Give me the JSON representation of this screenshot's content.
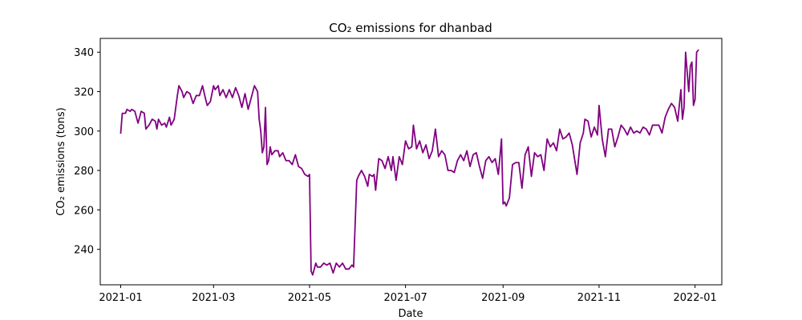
{
  "chart_data": {
    "type": "line",
    "title": "CO₂ emissions for dhanbad",
    "xlabel": "Date",
    "ylabel": "CO₂ emissions (tons)",
    "x_range": [
      "2020-12-19",
      "2022-01-18"
    ],
    "ylim": [
      222,
      347
    ],
    "grid": false,
    "legend": "none",
    "x_ticks": [
      {
        "date": "2021-01-01",
        "label": "2021-01"
      },
      {
        "date": "2021-03-01",
        "label": "2021-03"
      },
      {
        "date": "2021-05-01",
        "label": "2021-05"
      },
      {
        "date": "2021-07-01",
        "label": "2021-07"
      },
      {
        "date": "2021-09-01",
        "label": "2021-09"
      },
      {
        "date": "2021-11-01",
        "label": "2021-11"
      },
      {
        "date": "2022-01-01",
        "label": "2022-01"
      }
    ],
    "y_ticks": [
      240,
      260,
      280,
      300,
      320,
      340
    ],
    "line_color": "#800080",
    "series": [
      {
        "name": "",
        "points": [
          [
            "2021-01-01",
            299
          ],
          [
            "2021-01-02",
            309
          ],
          [
            "2021-01-04",
            309
          ],
          [
            "2021-01-05",
            311
          ],
          [
            "2021-01-07",
            310
          ],
          [
            "2021-01-08",
            311
          ],
          [
            "2021-01-10",
            310
          ],
          [
            "2021-01-12",
            304
          ],
          [
            "2021-01-14",
            310
          ],
          [
            "2021-01-16",
            309
          ],
          [
            "2021-01-17",
            301
          ],
          [
            "2021-01-19",
            303
          ],
          [
            "2021-01-21",
            306
          ],
          [
            "2021-01-23",
            305
          ],
          [
            "2021-01-24",
            301
          ],
          [
            "2021-01-25",
            306
          ],
          [
            "2021-01-27",
            303
          ],
          [
            "2021-01-29",
            304
          ],
          [
            "2021-01-30",
            302
          ],
          [
            "2021-02-01",
            307
          ],
          [
            "2021-02-02",
            303
          ],
          [
            "2021-02-04",
            306
          ],
          [
            "2021-02-06",
            318
          ],
          [
            "2021-02-07",
            323
          ],
          [
            "2021-02-09",
            320
          ],
          [
            "2021-02-10",
            317
          ],
          [
            "2021-02-12",
            320
          ],
          [
            "2021-02-14",
            319
          ],
          [
            "2021-02-16",
            314
          ],
          [
            "2021-02-18",
            318
          ],
          [
            "2021-02-20",
            318
          ],
          [
            "2021-02-22",
            323
          ],
          [
            "2021-02-24",
            316
          ],
          [
            "2021-02-25",
            313
          ],
          [
            "2021-02-27",
            315
          ],
          [
            "2021-03-01",
            323
          ],
          [
            "2021-03-02",
            321
          ],
          [
            "2021-03-04",
            323
          ],
          [
            "2021-03-05",
            318
          ],
          [
            "2021-03-07",
            321
          ],
          [
            "2021-03-09",
            317
          ],
          [
            "2021-03-11",
            321
          ],
          [
            "2021-03-13",
            317
          ],
          [
            "2021-03-15",
            322
          ],
          [
            "2021-03-17",
            318
          ],
          [
            "2021-03-19",
            312
          ],
          [
            "2021-03-21",
            319
          ],
          [
            "2021-03-23",
            311
          ],
          [
            "2021-03-25",
            317
          ],
          [
            "2021-03-27",
            323
          ],
          [
            "2021-03-29",
            320
          ],
          [
            "2021-03-30",
            306
          ],
          [
            "2021-03-31",
            300
          ],
          [
            "2021-04-01",
            289
          ],
          [
            "2021-04-02",
            292
          ],
          [
            "2021-04-03",
            312
          ],
          [
            "2021-04-04",
            283
          ],
          [
            "2021-04-05",
            285
          ],
          [
            "2021-04-06",
            292
          ],
          [
            "2021-04-07",
            288
          ],
          [
            "2021-04-09",
            290
          ],
          [
            "2021-04-11",
            290
          ],
          [
            "2021-04-12",
            287
          ],
          [
            "2021-04-14",
            289
          ],
          [
            "2021-04-16",
            285
          ],
          [
            "2021-04-18",
            285
          ],
          [
            "2021-04-20",
            283
          ],
          [
            "2021-04-22",
            288
          ],
          [
            "2021-04-24",
            282
          ],
          [
            "2021-04-26",
            281
          ],
          [
            "2021-04-28",
            278
          ],
          [
            "2021-04-30",
            277
          ],
          [
            "2021-05-01",
            278
          ],
          [
            "2021-05-02",
            229
          ],
          [
            "2021-05-03",
            227
          ],
          [
            "2021-05-05",
            233
          ],
          [
            "2021-05-06",
            231
          ],
          [
            "2021-05-08",
            231
          ],
          [
            "2021-05-10",
            233
          ],
          [
            "2021-05-12",
            232
          ],
          [
            "2021-05-14",
            233
          ],
          [
            "2021-05-16",
            228
          ],
          [
            "2021-05-18",
            233
          ],
          [
            "2021-05-20",
            231
          ],
          [
            "2021-05-22",
            233
          ],
          [
            "2021-05-24",
            230
          ],
          [
            "2021-05-26",
            230
          ],
          [
            "2021-05-28",
            232
          ],
          [
            "2021-05-29",
            231
          ],
          [
            "2021-05-31",
            275
          ],
          [
            "2021-06-01",
            277
          ],
          [
            "2021-06-03",
            280
          ],
          [
            "2021-06-05",
            277
          ],
          [
            "2021-06-07",
            272
          ],
          [
            "2021-06-08",
            278
          ],
          [
            "2021-06-10",
            277
          ],
          [
            "2021-06-11",
            278
          ],
          [
            "2021-06-12",
            270
          ],
          [
            "2021-06-14",
            286
          ],
          [
            "2021-06-16",
            285
          ],
          [
            "2021-06-18",
            281
          ],
          [
            "2021-06-20",
            287
          ],
          [
            "2021-06-22",
            280
          ],
          [
            "2021-06-23",
            287
          ],
          [
            "2021-06-25",
            275
          ],
          [
            "2021-06-27",
            287
          ],
          [
            "2021-06-29",
            283
          ],
          [
            "2021-07-01",
            295
          ],
          [
            "2021-07-03",
            291
          ],
          [
            "2021-07-05",
            292
          ],
          [
            "2021-07-06",
            303
          ],
          [
            "2021-07-08",
            291
          ],
          [
            "2021-07-10",
            295
          ],
          [
            "2021-07-12",
            289
          ],
          [
            "2021-07-14",
            293
          ],
          [
            "2021-07-16",
            286
          ],
          [
            "2021-07-18",
            290
          ],
          [
            "2021-07-20",
            301
          ],
          [
            "2021-07-22",
            287
          ],
          [
            "2021-07-24",
            290
          ],
          [
            "2021-07-26",
            288
          ],
          [
            "2021-07-28",
            280
          ],
          [
            "2021-07-30",
            280
          ],
          [
            "2021-08-01",
            279
          ],
          [
            "2021-08-03",
            285
          ],
          [
            "2021-08-05",
            288
          ],
          [
            "2021-08-07",
            285
          ],
          [
            "2021-08-09",
            290
          ],
          [
            "2021-08-11",
            282
          ],
          [
            "2021-08-13",
            288
          ],
          [
            "2021-08-15",
            289
          ],
          [
            "2021-08-17",
            282
          ],
          [
            "2021-08-19",
            276
          ],
          [
            "2021-08-21",
            285
          ],
          [
            "2021-08-23",
            287
          ],
          [
            "2021-08-25",
            284
          ],
          [
            "2021-08-27",
            286
          ],
          [
            "2021-08-29",
            278
          ],
          [
            "2021-08-31",
            296
          ],
          [
            "2021-09-01",
            263
          ],
          [
            "2021-09-02",
            264
          ],
          [
            "2021-09-03",
            262
          ],
          [
            "2021-09-05",
            266
          ],
          [
            "2021-09-07",
            283
          ],
          [
            "2021-09-09",
            284
          ],
          [
            "2021-09-11",
            284
          ],
          [
            "2021-09-13",
            271
          ],
          [
            "2021-09-15",
            288
          ],
          [
            "2021-09-17",
            292
          ],
          [
            "2021-09-19",
            277
          ],
          [
            "2021-09-21",
            289
          ],
          [
            "2021-09-23",
            287
          ],
          [
            "2021-09-25",
            288
          ],
          [
            "2021-09-27",
            280
          ],
          [
            "2021-09-29",
            296
          ],
          [
            "2021-10-01",
            292
          ],
          [
            "2021-10-03",
            294
          ],
          [
            "2021-10-05",
            290
          ],
          [
            "2021-10-07",
            301
          ],
          [
            "2021-10-09",
            296
          ],
          [
            "2021-10-11",
            297
          ],
          [
            "2021-10-13",
            299
          ],
          [
            "2021-10-15",
            293
          ],
          [
            "2021-10-17",
            283
          ],
          [
            "2021-10-18",
            278
          ],
          [
            "2021-10-20",
            294
          ],
          [
            "2021-10-22",
            299
          ],
          [
            "2021-10-23",
            306
          ],
          [
            "2021-10-25",
            305
          ],
          [
            "2021-10-27",
            297
          ],
          [
            "2021-10-29",
            302
          ],
          [
            "2021-10-31",
            298
          ],
          [
            "2021-11-01",
            313
          ],
          [
            "2021-11-03",
            296
          ],
          [
            "2021-11-05",
            287
          ],
          [
            "2021-11-07",
            301
          ],
          [
            "2021-11-09",
            301
          ],
          [
            "2021-11-11",
            292
          ],
          [
            "2021-11-13",
            297
          ],
          [
            "2021-11-15",
            303
          ],
          [
            "2021-11-17",
            301
          ],
          [
            "2021-11-19",
            298
          ],
          [
            "2021-11-21",
            302
          ],
          [
            "2021-11-23",
            299
          ],
          [
            "2021-11-25",
            300
          ],
          [
            "2021-11-27",
            299
          ],
          [
            "2021-11-29",
            302
          ],
          [
            "2021-12-01",
            301
          ],
          [
            "2021-12-03",
            298
          ],
          [
            "2021-12-05",
            303
          ],
          [
            "2021-12-07",
            303
          ],
          [
            "2021-12-09",
            303
          ],
          [
            "2021-12-11",
            299
          ],
          [
            "2021-12-13",
            307
          ],
          [
            "2021-12-15",
            311
          ],
          [
            "2021-12-17",
            314
          ],
          [
            "2021-12-19",
            312
          ],
          [
            "2021-12-21",
            305
          ],
          [
            "2021-12-23",
            321
          ],
          [
            "2021-12-24",
            306
          ],
          [
            "2021-12-25",
            312
          ],
          [
            "2021-12-26",
            340
          ],
          [
            "2021-12-27",
            330
          ],
          [
            "2021-12-28",
            320
          ],
          [
            "2021-12-29",
            333
          ],
          [
            "2021-12-30",
            335
          ],
          [
            "2021-12-31",
            313
          ],
          [
            "2022-01-01",
            316
          ],
          [
            "2022-01-02",
            340
          ],
          [
            "2022-01-03",
            341
          ]
        ]
      }
    ]
  }
}
